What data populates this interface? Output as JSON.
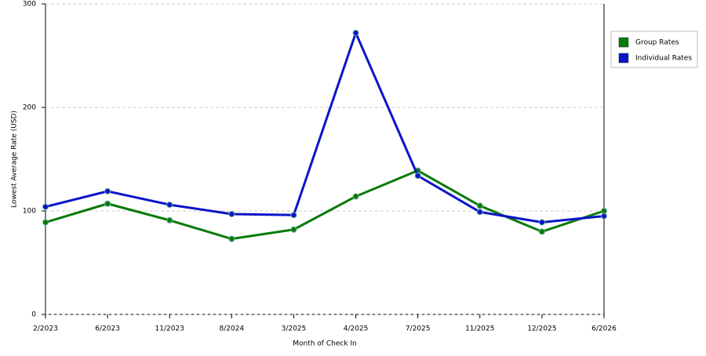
{
  "chart_data": {
    "type": "line",
    "x_label": "Month of Check In",
    "y_label": "Lowest Average Rate (USD)",
    "categories": [
      "2/2023",
      "6/2023",
      "11/2023",
      "8/2024",
      "3/2025",
      "4/2025",
      "7/2025",
      "11/2025",
      "12/2025",
      "6/2026"
    ],
    "series": [
      {
        "name": "Group Rates",
        "color": "#0a7a0a",
        "values": [
          89,
          107,
          91,
          73,
          82,
          114,
          139,
          105,
          80,
          100
        ]
      },
      {
        "name": "Individual Rates",
        "color": "#0a14c8",
        "values": [
          104,
          119,
          106,
          97,
          96,
          272,
          134,
          99,
          89,
          95
        ]
      }
    ],
    "ylim": [
      0,
      300
    ],
    "yticks": [
      0,
      100,
      200,
      300
    ],
    "grid": true,
    "legend": "top-right"
  }
}
